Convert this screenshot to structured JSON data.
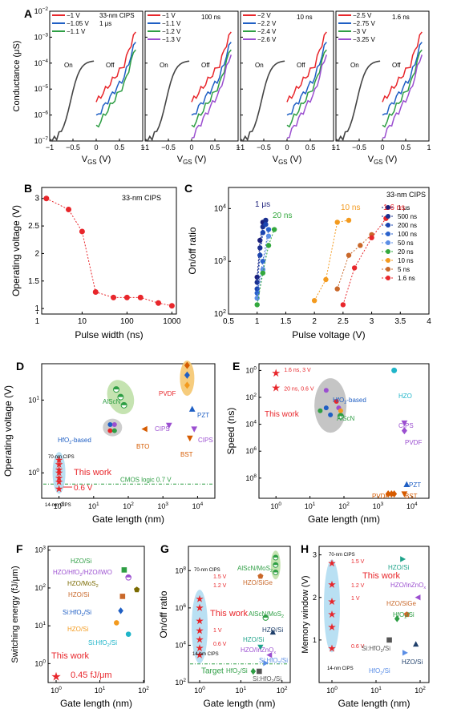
{
  "panels": {
    "A": {
      "label": "A"
    },
    "B": {
      "label": "B"
    },
    "C": {
      "label": "C"
    },
    "D": {
      "label": "D"
    },
    "E": {
      "label": "E"
    },
    "F": {
      "label": "F"
    },
    "G": {
      "label": "G"
    },
    "H": {
      "label": "H"
    }
  },
  "chart_data": [
    {
      "id": "A",
      "type": "line",
      "ylabel": "Conductance (μS)",
      "xlabel_sub": [
        "V",
        "GS",
        " (V)"
      ],
      "ylim_log": [
        -7,
        -2
      ],
      "ytick_exps": [
        -7,
        -6,
        -5,
        -4,
        -3,
        -2
      ],
      "xticks": [
        -1,
        -0.5,
        0,
        0.5,
        1
      ],
      "xtick_labels": [
        "−1",
        "−0.5",
        "0",
        "0.5",
        "1"
      ],
      "subplots": [
        {
          "title": "33-nm CIPS",
          "time": "1 μs",
          "legend": [
            "−1 V",
            "−1.05 V",
            "−1.1 V"
          ],
          "colors": [
            "#e8262b",
            "#1f5fc4",
            "#2e9e44"
          ],
          "on_label": "On",
          "off_label": "Off"
        },
        {
          "title": "",
          "time": "100 ns",
          "legend": [
            "−1 V",
            "−1.1 V",
            "−1.2 V",
            "−1.3 V"
          ],
          "colors": [
            "#e8262b",
            "#1f5fc4",
            "#2e9e44",
            "#9b4fd0"
          ],
          "on_label": "On",
          "off_label": "Off"
        },
        {
          "title": "",
          "time": "10 ns",
          "legend": [
            "−2 V",
            "−2.2 V",
            "−2.4 V",
            "−2.6 V"
          ],
          "colors": [
            "#e8262b",
            "#1f5fc4",
            "#2e9e44",
            "#9b4fd0"
          ],
          "on_label": "On",
          "off_label": "Off"
        },
        {
          "title": "",
          "time": "1.6 ns",
          "legend": [
            "−2.5 V",
            "−2.75 V",
            "−3 V",
            "−3.25 V"
          ],
          "colors": [
            "#e8262b",
            "#1f5fc4",
            "#2e9e44",
            "#9b4fd0"
          ],
          "on_label": "On",
          "off_label": "Off"
        }
      ]
    },
    {
      "id": "B",
      "type": "line",
      "annotation": "33-nm CIPS",
      "xlabel": "Pulse width (ns)",
      "ylabel": "Operating voltage (V)",
      "x": [
        1.6,
        5,
        10,
        20,
        50,
        100,
        200,
        500,
        1000
      ],
      "y": [
        3.0,
        2.8,
        2.4,
        1.3,
        1.2,
        1.2,
        1.2,
        1.1,
        1.05
      ],
      "xticks": [
        1,
        10,
        100,
        1000
      ],
      "xtick_labels": [
        "1",
        "10",
        "100",
        "1000"
      ],
      "yticks": [
        1,
        1.5,
        2,
        2.5,
        3
      ],
      "ytick_labels": [
        "1",
        "1.5",
        "2",
        "2.5",
        "3"
      ],
      "xlim_log": [
        0.1,
        3.1
      ],
      "ylim": [
        0.9,
        3.2
      ],
      "color": "#e8262b"
    },
    {
      "id": "C",
      "type": "scatter",
      "annotation": "33-nm CIPS",
      "xlabel": "Pulse voltage (V)",
      "ylabel": "On/off ratio",
      "xlim": [
        0.5,
        4
      ],
      "ylim_log": [
        2,
        4.4
      ],
      "xticks": [
        0.5,
        1,
        1.5,
        2,
        2.5,
        3,
        3.5,
        4
      ],
      "xtick_labels": [
        "0.5",
        "1",
        "1.5",
        "2",
        "2.5",
        "3",
        "3.5",
        "4"
      ],
      "ytick_exps": [
        2,
        3,
        4
      ],
      "series": [
        {
          "name": "1 μs",
          "color": "#1b1f7a",
          "x": [
            1.0,
            1.05,
            1.1
          ],
          "y": [
            500,
            2500,
            5500
          ]
        },
        {
          "name": "500 ns",
          "color": "#1a2f8f",
          "x": [
            1.0,
            1.05,
            1.1,
            1.15
          ],
          "y": [
            400,
            1800,
            4500,
            6000
          ]
        },
        {
          "name": "200 ns",
          "color": "#1b45b0",
          "x": [
            1.0,
            1.05,
            1.1,
            1.15
          ],
          "y": [
            300,
            1300,
            3500,
            5000
          ]
        },
        {
          "name": "100 ns",
          "color": "#2a62cc",
          "x": [
            1.0,
            1.1,
            1.2
          ],
          "y": [
            250,
            1000,
            4000
          ]
        },
        {
          "name": "50 ns",
          "color": "#5b8ee6",
          "x": [
            1.0,
            1.1,
            1.2
          ],
          "y": [
            200,
            700,
            3000
          ]
        },
        {
          "name": "20 ns",
          "color": "#33a83d",
          "x": [
            1.0,
            1.1,
            1.2,
            1.3
          ],
          "y": [
            150,
            600,
            2000,
            4000
          ]
        },
        {
          "name": "10 ns",
          "color": "#f39a1e",
          "x": [
            2.0,
            2.2,
            2.4,
            2.6
          ],
          "y": [
            180,
            450,
            5500,
            6000
          ]
        },
        {
          "name": "5 ns",
          "color": "#c9682a",
          "x": [
            2.4,
            2.6,
            2.8,
            3.0
          ],
          "y": [
            300,
            1300,
            2000,
            3200
          ]
        },
        {
          "name": "1.6 ns",
          "color": "#e8262b",
          "x": [
            2.5,
            2.7,
            3.0,
            3.25
          ],
          "y": [
            150,
            750,
            2800,
            6500
          ]
        }
      ],
      "callouts": [
        {
          "text": "1 μs",
          "color": "#1b1f7a"
        },
        {
          "text": "20 ns",
          "color": "#33a83d"
        },
        {
          "text": "10 ns",
          "color": "#f39a1e"
        },
        {
          "text": "1.6 ns",
          "color": "#e8262b"
        }
      ]
    },
    {
      "id": "D",
      "type": "scatter",
      "xlabel": "Gate length (nm)",
      "ylabel": "Operating voltage (V)",
      "this_work": "This work",
      "ref_line": "CMOS logic  0.7 V",
      "ref_value": 0.7,
      "point_label": "0.6 V",
      "labels": {
        "top": "70-nm CIPS",
        "bottom": "14-nm CIPS"
      },
      "items": [
        {
          "text": "AlScN",
          "color": "#2e9e44"
        },
        {
          "text": "HfO2-based",
          "color": "#1f5fc4"
        },
        {
          "text": "PVDF",
          "color": "#e8262b"
        },
        {
          "text": "PZT",
          "color": "#1f5fc4"
        },
        {
          "text": "CIPS",
          "color": "#9b4fd0"
        },
        {
          "text": "CIPS",
          "color": "#9b4fd0"
        },
        {
          "text": "BTO",
          "color": "#d65b00"
        },
        {
          "text": "BST",
          "color": "#d65b00"
        }
      ]
    },
    {
      "id": "E",
      "type": "scatter",
      "xlabel": "Gate length (nm)",
      "ylabel": "Speed (ns)",
      "this_work": "This work",
      "labels": [
        "1.6 ns, 3 V",
        "20 ns, 0.6 V"
      ],
      "items": [
        {
          "text": "HfO2-based",
          "color": "#1f5fc4"
        },
        {
          "text": "HZO",
          "color": "#1fb5c9"
        },
        {
          "text": "AlScN",
          "color": "#2e9e44"
        },
        {
          "text": "CIPS",
          "color": "#9b4fd0"
        },
        {
          "text": "PVDF",
          "color": "#9b4fd0"
        },
        {
          "text": "PZT",
          "color": "#1f5fc4"
        },
        {
          "text": "PVDF",
          "color": "#d65b00"
        },
        {
          "text": "BST",
          "color": "#d65b00"
        }
      ]
    },
    {
      "id": "F",
      "type": "scatter",
      "xlabel": "Gate length (nm)",
      "ylabel": "Switching energy (fJ/μm)",
      "this_work": "This work",
      "this_value": "0.45 fJ/μm",
      "items": [
        {
          "text": "HZO/Si",
          "color": "#2e9e44"
        },
        {
          "text": "HZO/HfO2/HZO/IWO",
          "color": "#9b4fd0"
        },
        {
          "text": "HZO/MoS2",
          "color": "#7a6a00"
        },
        {
          "text": "HZO/Si",
          "color": "#c9682a"
        },
        {
          "text": "Si:HfO2/Si",
          "color": "#1f5fc4"
        },
        {
          "text": "HZO/Si",
          "color": "#f39a1e"
        },
        {
          "text": "Si:HfO2/Si",
          "color": "#1fb5c9"
        }
      ]
    },
    {
      "id": "G",
      "type": "scatter",
      "xlabel": "Gate length (nm)",
      "ylabel": "On/off ratio",
      "target": "Target",
      "this_work": "This work",
      "labels": {
        "top": "70-nm CIPS",
        "bottom": "14-nm CIPS",
        "v": [
          "1.5 V",
          "1.2 V",
          "1 V",
          "0.6 V"
        ]
      },
      "items": [
        {
          "text": "AlScN/MoS2",
          "color": "#2e9e44"
        },
        {
          "text": "HZO/SiGe",
          "color": "#c9682a"
        },
        {
          "text": "AlScN/MoS2",
          "color": "#2e9e44"
        },
        {
          "text": "HZO/Si",
          "color": "#1f3f6a"
        },
        {
          "text": "HZO/Si",
          "color": "#1fa38a"
        },
        {
          "text": "HZO/InZnOx",
          "color": "#9b4fd0"
        },
        {
          "text": "Si:HfO2/Si",
          "color": "#5b8ee6"
        },
        {
          "text": "HfO2/Si",
          "color": "#2e9e44"
        },
        {
          "text": "Si:HfO2/Si",
          "color": "#555555"
        }
      ]
    },
    {
      "id": "H",
      "type": "scatter",
      "xlabel": "Gate length (nm)",
      "ylabel": "Memory window (V)",
      "this_work": "This work",
      "labels": {
        "top": "70-nm CIPS",
        "bottom": "14-nm CIPS",
        "v": [
          "1.5 V",
          "1.2 V",
          "1 V",
          "0.6 V"
        ]
      },
      "items": [
        {
          "text": "HZO/Si",
          "color": "#1fa38a"
        },
        {
          "text": "HZO/InZnOx",
          "color": "#9b4fd0"
        },
        {
          "text": "HZO/SiGe",
          "color": "#c9682a"
        },
        {
          "text": "HfO2/Si",
          "color": "#2e9e44"
        },
        {
          "text": "Si:HfO2/Si",
          "color": "#555555"
        },
        {
          "text": "HZO/Si",
          "color": "#1f3f6a"
        },
        {
          "text": "HfO2/Si",
          "color": "#5b8ee6"
        }
      ]
    }
  ]
}
